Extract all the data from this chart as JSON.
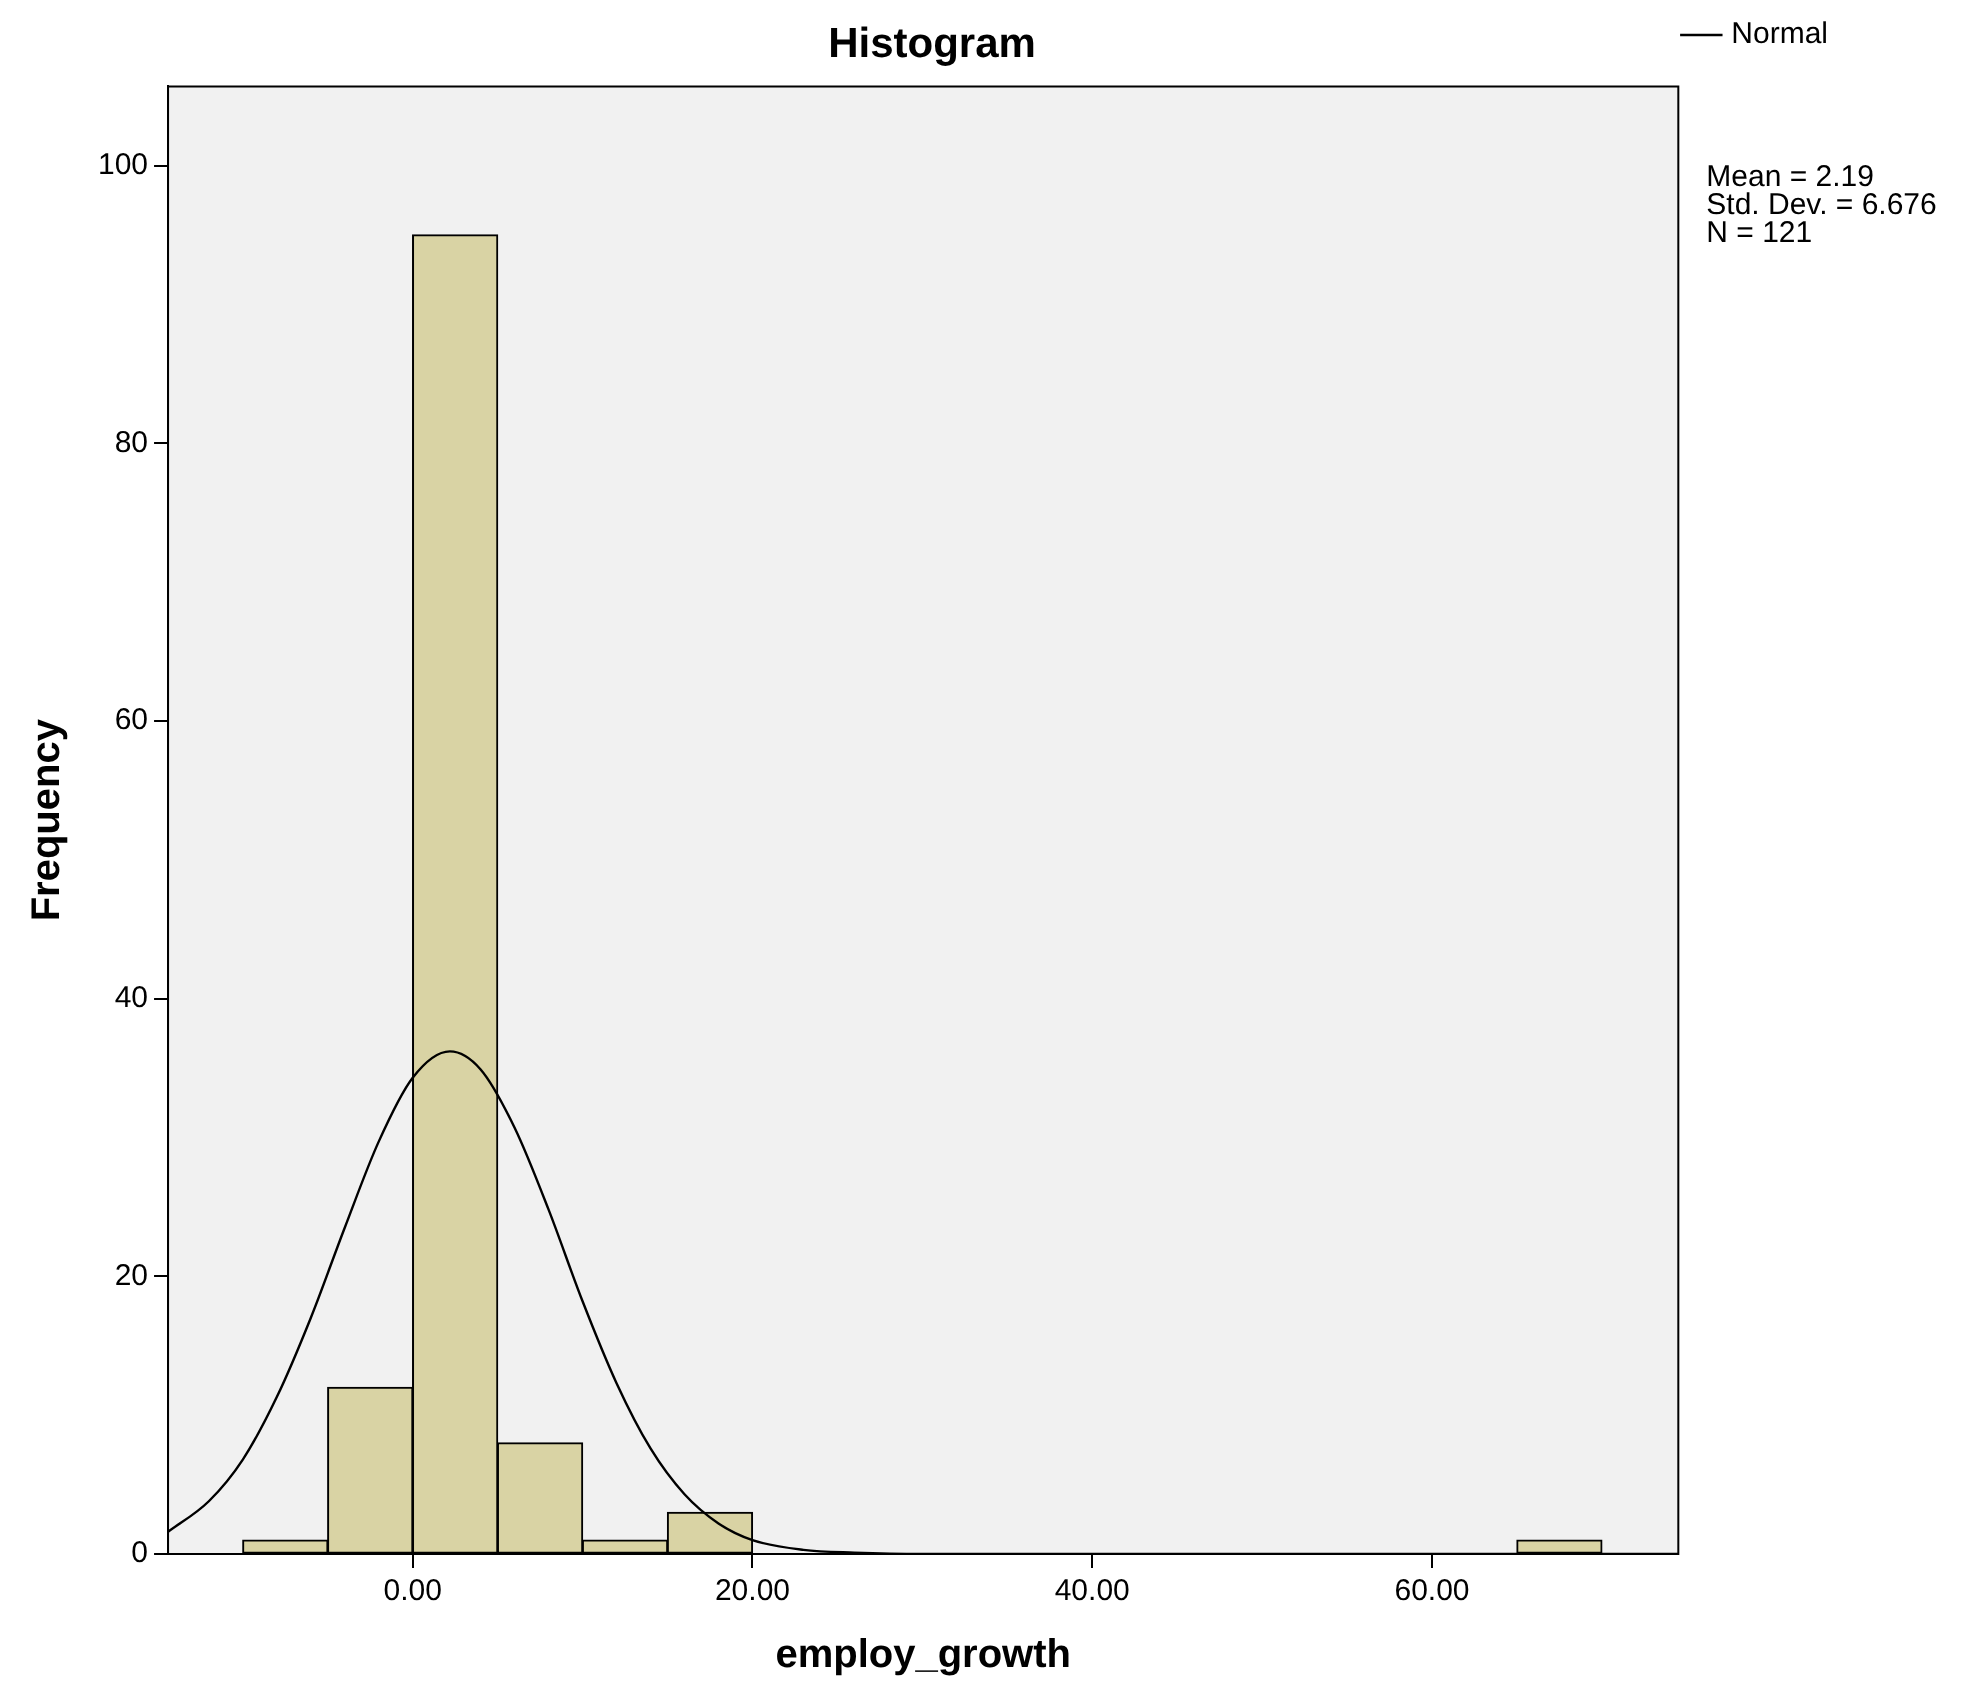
{
  "chart_data": {
    "type": "histogram",
    "title": "Histogram",
    "xlabel": "employ_growth",
    "ylabel": "Frequency",
    "bins": [
      -10,
      -5,
      0,
      5,
      10,
      15,
      20,
      25,
      30,
      35,
      40,
      45,
      50,
      55,
      60,
      65,
      70
    ],
    "values": [
      1,
      12,
      95,
      8,
      1,
      3,
      0,
      0,
      0,
      0,
      0,
      0,
      0,
      0,
      0,
      1
    ],
    "color": "#d9d3a4",
    "series": [
      {
        "name": "Normal",
        "type": "line",
        "color": "#000000",
        "x": [
          -14.4,
          -12,
          -10,
          -8,
          -6,
          -4,
          -2,
          0,
          2.19,
          4,
          6,
          8,
          10,
          12,
          14,
          16,
          18,
          20,
          23,
          26,
          30,
          74.5
        ],
        "values": [
          1.6,
          3.8,
          6.8,
          11.3,
          17.0,
          23.5,
          29.7,
          34.3,
          36.2,
          34.9,
          30.7,
          24.8,
          18.2,
          12.3,
          7.6,
          4.3,
          2.2,
          1.0,
          0.3,
          0.1,
          0,
          0
        ]
      }
    ],
    "xlim": [
      -14.4,
      74.5
    ],
    "ylim": [
      0,
      105.7
    ],
    "xticks": [
      {
        "value": 0,
        "label": "0.00"
      },
      {
        "value": 20,
        "label": "20.00"
      },
      {
        "value": 40,
        "label": "40.00"
      },
      {
        "value": 60,
        "label": "60.00"
      }
    ],
    "yticks": [
      0,
      20,
      40,
      60,
      80,
      100
    ],
    "legend": "top right",
    "grid": false,
    "marker": "none",
    "line_style": "solid",
    "annotations": [
      "Mean = 2.19",
      "Std. Dev. = 6.676",
      "N = 121"
    ]
  }
}
